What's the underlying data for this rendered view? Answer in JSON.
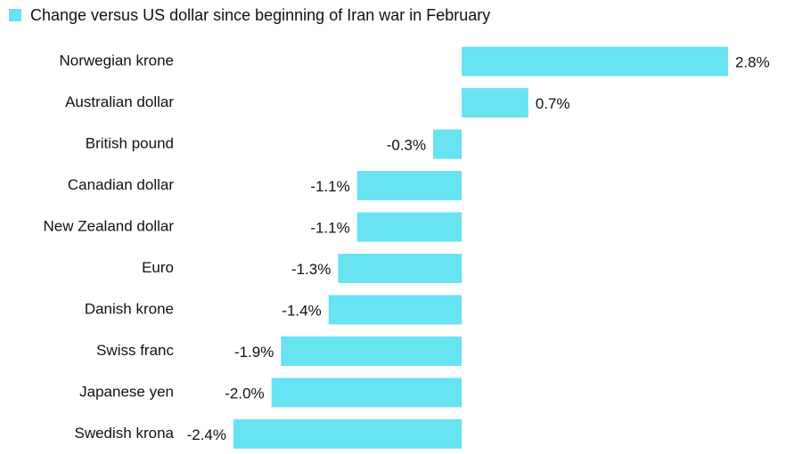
{
  "chart_data": {
    "type": "bar",
    "orientation": "horizontal",
    "categories": [
      "Norwegian krone",
      "Australian dollar",
      "British pound",
      "Canadian dollar",
      "New Zealand dollar",
      "Euro",
      "Danish krone",
      "Swiss franc",
      "Japanese yen",
      "Swedish krona"
    ],
    "series": [
      {
        "name": "Change versus US dollar since beginning of Iran war in February",
        "color": "#67e3f2",
        "values": [
          2.8,
          0.7,
          -0.3,
          -1.1,
          -1.1,
          -1.3,
          -1.4,
          -1.9,
          -2.0,
          -2.4
        ],
        "value_labels": [
          "2.8%",
          "0.7%",
          "-0.3%",
          "-1.1%",
          "-1.1%",
          "-1.3%",
          "-1.4%",
          "-1.9%",
          "-2.0%",
          "-2.4%"
        ]
      }
    ]
  }
}
